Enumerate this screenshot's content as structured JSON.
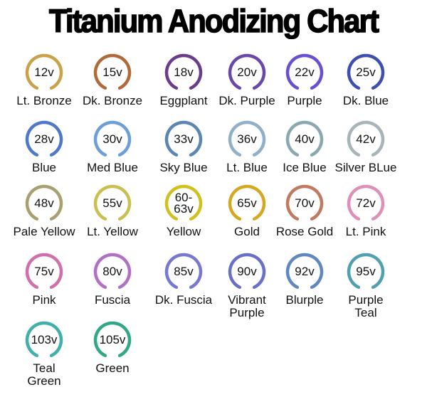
{
  "title": "Titanium Anodizing Chart",
  "rings": [
    {
      "voltage": "12v",
      "name": "Lt. Bronze",
      "color": "#c9a24a"
    },
    {
      "voltage": "15v",
      "name": "Dk. Bronze",
      "color": "#b06a3a"
    },
    {
      "voltage": "18v",
      "name": "Eggplant",
      "color": "#6a3d8c"
    },
    {
      "voltage": "20v",
      "name": "Dk. Purple",
      "color": "#6a48a8"
    },
    {
      "voltage": "22v",
      "name": "Purple",
      "color": "#6a4fd0"
    },
    {
      "voltage": "25v",
      "name": "Dk. Blue",
      "color": "#3f4fb0"
    },
    {
      "voltage": "28v",
      "name": "Blue",
      "color": "#4f78c8"
    },
    {
      "voltage": "30v",
      "name": "Med Blue",
      "color": "#6e9ed8"
    },
    {
      "voltage": "33v",
      "name": "Sky Blue",
      "color": "#5a86b0"
    },
    {
      "voltage": "36v",
      "name": "Lt. Blue",
      "color": "#8fb0c8"
    },
    {
      "voltage": "40v",
      "name": "Ice Blue",
      "color": "#8aa8b0"
    },
    {
      "voltage": "42v",
      "name": "Silver BLue",
      "color": "#a8b4b8"
    },
    {
      "voltage": "48v",
      "name": "Pale Yellow",
      "color": "#a8a070"
    },
    {
      "voltage": "55v",
      "name": "Lt. Yellow",
      "color": "#c8c050"
    },
    {
      "voltage": "60-\n63v",
      "name": "Yellow",
      "color": "#d0c020"
    },
    {
      "voltage": "65v",
      "name": "Gold",
      "color": "#d4a820"
    },
    {
      "voltage": "70v",
      "name": "Rose Gold",
      "color": "#c07a60"
    },
    {
      "voltage": "72v",
      "name": "Lt. Pink",
      "color": "#e090b8"
    },
    {
      "voltage": "75v",
      "name": "Pink",
      "color": "#d070a8"
    },
    {
      "voltage": "80v",
      "name": "Fuscia",
      "color": "#b070c8"
    },
    {
      "voltage": "85v",
      "name": "Dk. Fuscia",
      "color": "#7878d0"
    },
    {
      "voltage": "90v",
      "name": "Vibrant\nPurple",
      "color": "#6a70c8"
    },
    {
      "voltage": "92v",
      "name": "Blurple",
      "color": "#6088c0"
    },
    {
      "voltage": "95v",
      "name": "Purple\nTeal",
      "color": "#50a0b0"
    },
    {
      "voltage": "103v",
      "name": "Teal\nGreen",
      "color": "#40b0a8"
    },
    {
      "voltage": "105v",
      "name": "Green",
      "color": "#30a888"
    }
  ]
}
